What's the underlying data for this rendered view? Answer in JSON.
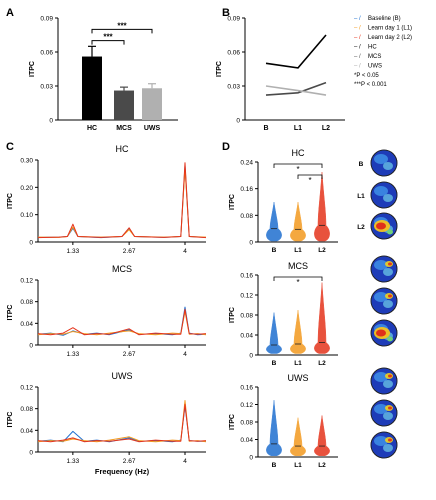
{
  "panel_labels": {
    "A": "A",
    "B": "B",
    "C": "C",
    "D": "D"
  },
  "legend": {
    "items": [
      {
        "key": "Baseline (B)",
        "color": "#1f6fd0",
        "prefix": "– /"
      },
      {
        "key": "Learn day 1 (L1)",
        "color": "#f39a1f",
        "prefix": "– /"
      },
      {
        "key": "Learn day 2 (L2)",
        "color": "#e5341c",
        "prefix": "– /"
      },
      {
        "key": "HC",
        "color": "#000000",
        "prefix": "– /"
      },
      {
        "key": "MCS",
        "color": "#555555",
        "prefix": "– /"
      },
      {
        "key": "UWS",
        "color": "#aaaaaa",
        "prefix": "– /"
      }
    ],
    "notes": [
      "*P < 0.05",
      "***P < 0.001"
    ]
  },
  "colors": {
    "B": "#1f6fd0",
    "L1": "#f39a1f",
    "L2": "#e5341c",
    "HC": "#000000",
    "MCS": "#4a4a4a",
    "UWS": "#b0b0b0"
  },
  "chart_data": [
    {
      "id": "A",
      "type": "bar",
      "categories": [
        "HC",
        "MCS",
        "UWS"
      ],
      "values": [
        0.056,
        0.026,
        0.028
      ],
      "errors": [
        0.009,
        0.003,
        0.004
      ],
      "colors": [
        "#000000",
        "#4a4a4a",
        "#b0b0b0"
      ],
      "ylabel": "ITPC",
      "ylim": [
        0,
        0.09
      ],
      "yticks": [
        "0.09",
        "0.06",
        "0.03",
        "0"
      ],
      "significance": [
        {
          "from": "HC",
          "to": "MCS",
          "label": "***"
        },
        {
          "from": "HC",
          "to": "UWS",
          "label": "***"
        }
      ]
    },
    {
      "id": "B",
      "type": "line",
      "categories": [
        "B",
        "L1",
        "L2"
      ],
      "ylabel": "ITPC",
      "ylim": [
        0,
        0.09
      ],
      "yticks": [
        "0.09",
        "0.06",
        "0.03",
        "0"
      ],
      "series": [
        {
          "name": "HC",
          "color": "#000000",
          "values": [
            0.05,
            0.046,
            0.075
          ]
        },
        {
          "name": "MCS",
          "color": "#4a4a4a",
          "values": [
            0.022,
            0.024,
            0.033
          ]
        },
        {
          "name": "UWS",
          "color": "#b0b0b0",
          "values": [
            0.03,
            0.026,
            0.022
          ]
        }
      ]
    },
    {
      "id": "C-HC",
      "type": "line",
      "title": "HC",
      "ylabel": "ITPC",
      "ylim": [
        0,
        0.3
      ],
      "yticks": [
        "0.30",
        "0.20",
        "0.10",
        "0"
      ],
      "xticks": [
        "1.33",
        "2.67",
        "4"
      ],
      "xtick_values": [
        1.33,
        2.67,
        4
      ],
      "xlim": [
        0.5,
        4.5
      ],
      "xlabel": "",
      "series": [
        {
          "name": "B",
          "color": "#1f6fd0",
          "x": [
            0.5,
            1.0,
            1.2,
            1.33,
            1.45,
            2.0,
            2.5,
            2.67,
            2.8,
            3.5,
            3.9,
            4.0,
            4.1,
            4.5
          ],
          "values": [
            0.017,
            0.018,
            0.02,
            0.05,
            0.02,
            0.016,
            0.02,
            0.05,
            0.02,
            0.017,
            0.02,
            0.28,
            0.02,
            0.017
          ]
        },
        {
          "name": "L1",
          "color": "#f39a1f",
          "x": [
            0.5,
            1.0,
            1.2,
            1.33,
            1.45,
            2.0,
            2.5,
            2.67,
            2.8,
            3.5,
            3.9,
            4.0,
            4.1,
            4.5
          ],
          "values": [
            0.018,
            0.017,
            0.02,
            0.055,
            0.02,
            0.018,
            0.02,
            0.045,
            0.02,
            0.018,
            0.02,
            0.27,
            0.02,
            0.018
          ]
        },
        {
          "name": "L2",
          "color": "#e5341c",
          "x": [
            0.5,
            1.0,
            1.2,
            1.33,
            1.45,
            2.0,
            2.5,
            2.67,
            2.8,
            3.5,
            3.9,
            4.0,
            4.1,
            4.5
          ],
          "values": [
            0.016,
            0.018,
            0.02,
            0.065,
            0.02,
            0.017,
            0.02,
            0.052,
            0.02,
            0.017,
            0.02,
            0.29,
            0.02,
            0.016
          ]
        }
      ]
    },
    {
      "id": "C-MCS",
      "type": "line",
      "title": "MCS",
      "ylabel": "ITPC",
      "ylim": [
        0,
        0.12
      ],
      "yticks": [
        "0.12",
        "0.08",
        "0.04",
        "0"
      ],
      "xticks": [
        "1.33",
        "2.67",
        "4"
      ],
      "xtick_values": [
        1.33,
        2.67,
        4
      ],
      "xlim": [
        0.5,
        4.5
      ],
      "xlabel": "",
      "series": [
        {
          "name": "B",
          "color": "#1f6fd0",
          "x": [
            0.5,
            0.8,
            1.1,
            1.33,
            1.6,
            1.9,
            2.2,
            2.67,
            2.9,
            3.3,
            3.7,
            3.9,
            4.0,
            4.1,
            4.3,
            4.5
          ],
          "values": [
            0.02,
            0.022,
            0.018,
            0.026,
            0.02,
            0.022,
            0.019,
            0.028,
            0.02,
            0.021,
            0.019,
            0.022,
            0.07,
            0.022,
            0.019,
            0.02
          ]
        },
        {
          "name": "L1",
          "color": "#f39a1f",
          "x": [
            0.5,
            0.8,
            1.1,
            1.33,
            1.6,
            1.9,
            2.2,
            2.67,
            2.9,
            3.3,
            3.7,
            3.9,
            4.0,
            4.1,
            4.3,
            4.5
          ],
          "values": [
            0.019,
            0.021,
            0.02,
            0.025,
            0.021,
            0.019,
            0.022,
            0.026,
            0.021,
            0.019,
            0.022,
            0.021,
            0.062,
            0.02,
            0.021,
            0.019
          ]
        },
        {
          "name": "L2",
          "color": "#e5341c",
          "x": [
            0.5,
            0.8,
            1.1,
            1.33,
            1.6,
            1.9,
            2.2,
            2.67,
            2.9,
            3.3,
            3.7,
            3.9,
            4.0,
            4.1,
            4.3,
            4.5
          ],
          "values": [
            0.021,
            0.019,
            0.022,
            0.032,
            0.019,
            0.021,
            0.02,
            0.03,
            0.019,
            0.022,
            0.02,
            0.02,
            0.066,
            0.021,
            0.02,
            0.021
          ]
        }
      ]
    },
    {
      "id": "C-UWS",
      "type": "line",
      "title": "UWS",
      "ylabel": "ITPC",
      "ylim": [
        0,
        0.12
      ],
      "yticks": [
        "0.12",
        "0.08",
        "0.04",
        "0"
      ],
      "xticks": [
        "1.33",
        "2.67",
        "4"
      ],
      "xtick_values": [
        1.33,
        2.67,
        4
      ],
      "xlim": [
        0.5,
        4.5
      ],
      "xlabel": "Frequency (Hz)",
      "series": [
        {
          "name": "B",
          "color": "#1f6fd0",
          "x": [
            0.5,
            0.8,
            1.1,
            1.33,
            1.6,
            1.9,
            2.2,
            2.67,
            2.9,
            3.3,
            3.7,
            3.9,
            4.0,
            4.1,
            4.3,
            4.5
          ],
          "values": [
            0.02,
            0.022,
            0.019,
            0.038,
            0.02,
            0.022,
            0.019,
            0.026,
            0.02,
            0.021,
            0.019,
            0.022,
            0.085,
            0.021,
            0.02,
            0.02
          ]
        },
        {
          "name": "L1",
          "color": "#f39a1f",
          "x": [
            0.5,
            0.8,
            1.1,
            1.33,
            1.6,
            1.9,
            2.2,
            2.67,
            2.9,
            3.3,
            3.7,
            3.9,
            4.0,
            4.1,
            4.3,
            4.5
          ],
          "values": [
            0.019,
            0.021,
            0.02,
            0.024,
            0.021,
            0.019,
            0.022,
            0.028,
            0.021,
            0.019,
            0.022,
            0.021,
            0.095,
            0.02,
            0.021,
            0.019
          ]
        },
        {
          "name": "L2",
          "color": "#e5341c",
          "x": [
            0.5,
            0.8,
            1.1,
            1.33,
            1.6,
            1.9,
            2.2,
            2.67,
            2.9,
            3.3,
            3.7,
            3.9,
            4.0,
            4.1,
            4.3,
            4.5
          ],
          "values": [
            0.021,
            0.019,
            0.022,
            0.026,
            0.019,
            0.021,
            0.02,
            0.024,
            0.019,
            0.022,
            0.02,
            0.02,
            0.088,
            0.021,
            0.02,
            0.021
          ]
        }
      ]
    },
    {
      "id": "D-HC",
      "type": "violin",
      "title": "HC",
      "categories": [
        "B",
        "L1",
        "L2"
      ],
      "colors": [
        "#1f6fd0",
        "#f39a1f",
        "#e5341c"
      ],
      "ylabel": "ITPC",
      "ylim": [
        0,
        0.24
      ],
      "yticks": [
        "0.24",
        "0.16",
        "0.08",
        "0"
      ],
      "medians": [
        0.04,
        0.038,
        0.05
      ],
      "maxima": [
        0.12,
        0.12,
        0.21
      ],
      "significance": [
        {
          "from": "B",
          "to": "L2",
          "label": "*"
        },
        {
          "from": "L1",
          "to": "L2",
          "label": "*"
        }
      ],
      "topomap_labels": [
        "B",
        "L1",
        "L2"
      ]
    },
    {
      "id": "D-MCS",
      "type": "violin",
      "title": "MCS",
      "categories": [
        "B",
        "L1",
        "L2"
      ],
      "colors": [
        "#1f6fd0",
        "#f39a1f",
        "#e5341c"
      ],
      "ylabel": "ITPC",
      "ylim": [
        0,
        0.16
      ],
      "yticks": [
        "0.16",
        "0.12",
        "0.08",
        "0.04",
        "0"
      ],
      "medians": [
        0.02,
        0.022,
        0.025
      ],
      "maxima": [
        0.085,
        0.09,
        0.145
      ],
      "significance": [
        {
          "from": "B",
          "to": "L2",
          "label": "*"
        }
      ]
    },
    {
      "id": "D-UWS",
      "type": "violin",
      "title": "UWS",
      "categories": [
        "B",
        "L1",
        "L2"
      ],
      "colors": [
        "#1f6fd0",
        "#f39a1f",
        "#e5341c"
      ],
      "ylabel": "ITPC",
      "ylim": [
        0,
        0.16
      ],
      "yticks": [
        "0.16",
        "0.12",
        "0.08",
        "0.04",
        "0"
      ],
      "medians": [
        0.03,
        0.025,
        0.025
      ],
      "maxima": [
        0.13,
        0.09,
        0.095
      ],
      "significance": []
    }
  ]
}
